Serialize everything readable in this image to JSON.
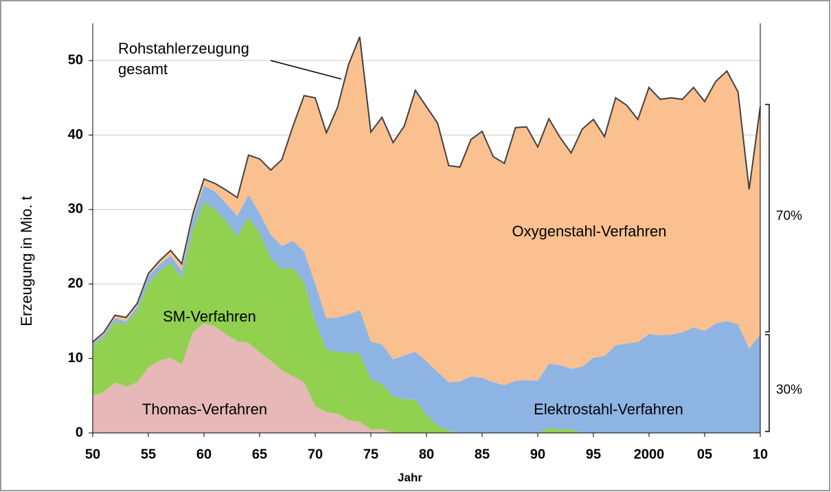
{
  "chart_data": {
    "type": "stacked-area",
    "y_label": "Erzeugung in Mio. t",
    "x_label": "Jahr",
    "annotations": [
      "Rohstahlerzeugung",
      "gesamt",
      "70%",
      "30%"
    ],
    "x": [
      1950,
      1951,
      1952,
      1953,
      1954,
      1955,
      1956,
      1957,
      1958,
      1959,
      1960,
      1961,
      1962,
      1963,
      1964,
      1965,
      1966,
      1967,
      1968,
      1969,
      1970,
      1971,
      1972,
      1973,
      1974,
      1975,
      1976,
      1977,
      1978,
      1979,
      1980,
      1981,
      1982,
      1983,
      1984,
      1985,
      1986,
      1987,
      1988,
      1989,
      1990,
      1991,
      1992,
      1993,
      1994,
      1995,
      1996,
      1997,
      1998,
      1999,
      2000,
      2001,
      2002,
      2003,
      2004,
      2005,
      2006,
      2007,
      2008,
      2009,
      2010
    ],
    "series": [
      {
        "name": "Thomas-Verfahren",
        "color": "#e6b8b7",
        "values": [
          5.0,
          5.5,
          6.8,
          6.2,
          6.8,
          8.8,
          9.7,
          10.1,
          9.2,
          13.5,
          14.7,
          14.3,
          13.2,
          12.3,
          12.1,
          10.8,
          9.7,
          8.4,
          7.6,
          6.8,
          3.6,
          2.8,
          2.6,
          1.7,
          1.5,
          0.5,
          0.5,
          0,
          0,
          0,
          0,
          0,
          0,
          0,
          0,
          0,
          0,
          0,
          0,
          0,
          0,
          0,
          0,
          0,
          0,
          0,
          0,
          0,
          0,
          0,
          0,
          0,
          0,
          0,
          0,
          0,
          0,
          0,
          0,
          0,
          0
        ]
      },
      {
        "name": "SM-Verfahren",
        "color": "#92d050",
        "values": [
          6.7,
          7.3,
          8.1,
          8.4,
          9.6,
          11.3,
          12.0,
          12.7,
          11.6,
          13.8,
          16.3,
          15.7,
          15.2,
          14.1,
          16.9,
          16.0,
          13.8,
          13.6,
          14.5,
          13.5,
          11.4,
          8.4,
          8.3,
          9.0,
          9.2,
          6.7,
          6.1,
          4.9,
          4.5,
          4.5,
          2.4,
          1.0,
          0.3,
          0,
          0,
          0,
          0,
          0,
          0,
          0,
          0,
          0.6,
          0.5,
          0.5,
          0,
          0,
          0,
          0,
          0,
          0,
          0,
          0,
          0,
          0,
          0,
          0,
          0,
          0,
          0,
          0,
          0
        ]
      },
      {
        "name": "Elektrostahl-Verfahren",
        "color": "#8eb4e3",
        "values": [
          0.3,
          0.4,
          0.5,
          0.4,
          0.6,
          0.9,
          0.9,
          1.0,
          1.0,
          1.5,
          2.2,
          2.4,
          2.4,
          2.7,
          3.0,
          2.7,
          3.1,
          3.1,
          3.7,
          4.1,
          5.0,
          4.2,
          4.6,
          5.2,
          5.8,
          5.1,
          5.3,
          5.0,
          5.9,
          6.4,
          7.2,
          7.2,
          6.5,
          6.9,
          7.6,
          7.4,
          6.8,
          6.4,
          7.0,
          7.1,
          7.0,
          8.7,
          8.6,
          8.1,
          8.9,
          10.1,
          10.3,
          11.8,
          12.0,
          12.2,
          13.3,
          13.1,
          13.2,
          13.5,
          14.2,
          13.7,
          14.7,
          15.0,
          14.6,
          11.3,
          13.2
        ]
      },
      {
        "name": "Oxygenstahl-Verfahren",
        "color": "#fac090",
        "values": [
          0.2,
          0.3,
          0.4,
          0.5,
          0.4,
          0.4,
          0.5,
          0.7,
          0.9,
          0.6,
          0.9,
          1.1,
          1.8,
          2.5,
          5.3,
          7.3,
          8.7,
          11.6,
          15.4,
          20.9,
          25.0,
          24.9,
          28.2,
          33.6,
          36.7,
          28.1,
          30.5,
          29.1,
          30.8,
          35.1,
          34.2,
          33.4,
          29.1,
          28.8,
          31.8,
          33.1,
          30.3,
          29.8,
          34.0,
          34.0,
          31.4,
          32.9,
          30.6,
          29.0,
          31.9,
          32.0,
          29.5,
          33.2,
          32.0,
          29.9,
          33.1,
          31.7,
          31.8,
          31.3,
          32.2,
          30.8,
          32.5,
          33.6,
          31.2,
          21.4,
          30.6
        ]
      }
    ],
    "xlim": [
      1950,
      2010
    ],
    "xticks": [
      {
        "value": 1950,
        "label": "50"
      },
      {
        "value": 1955,
        "label": "55"
      },
      {
        "value": 1960,
        "label": "60"
      },
      {
        "value": 1965,
        "label": "65"
      },
      {
        "value": 1970,
        "label": "70"
      },
      {
        "value": 1975,
        "label": "75"
      },
      {
        "value": 1980,
        "label": "80"
      },
      {
        "value": 1985,
        "label": "85"
      },
      {
        "value": 1990,
        "label": "90"
      },
      {
        "value": 1995,
        "label": "95"
      },
      {
        "value": 2000,
        "label": "2000"
      },
      {
        "value": 2005,
        "label": "05"
      },
      {
        "value": 2010,
        "label": "10"
      }
    ],
    "ylim": [
      0,
      55
    ],
    "yticks": [
      0,
      10,
      20,
      30,
      40,
      50
    ],
    "grid": true
  }
}
